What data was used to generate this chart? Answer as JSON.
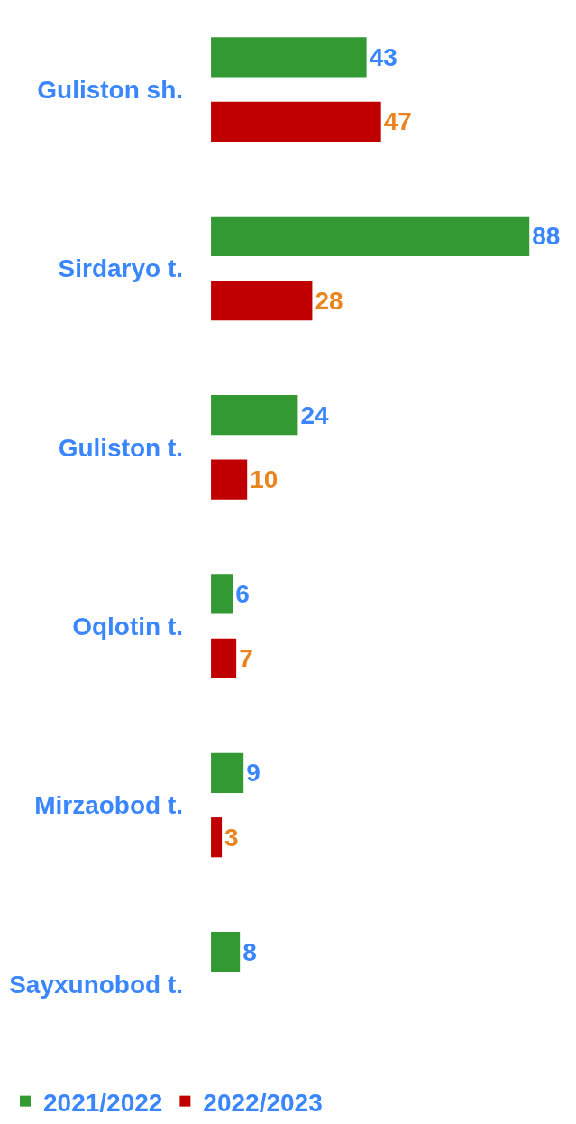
{
  "chart_data": {
    "type": "bar",
    "orientation": "horizontal",
    "categories": [
      "Guliston sh.",
      "Sirdaryo t.",
      "Guliston t.",
      "Oqlotin t.",
      "Mirzaobod t.",
      "Sayxunobod t."
    ],
    "series": [
      {
        "name": "2021/2022",
        "color": "#339933",
        "values": [
          43,
          88,
          24,
          6,
          9,
          8
        ]
      },
      {
        "name": "2022/2023",
        "color": "#c00000",
        "values": [
          47,
          28,
          10,
          7,
          3,
          null
        ]
      }
    ],
    "data_labels": true,
    "legend": "bottom",
    "tick_labels": "y"
  }
}
